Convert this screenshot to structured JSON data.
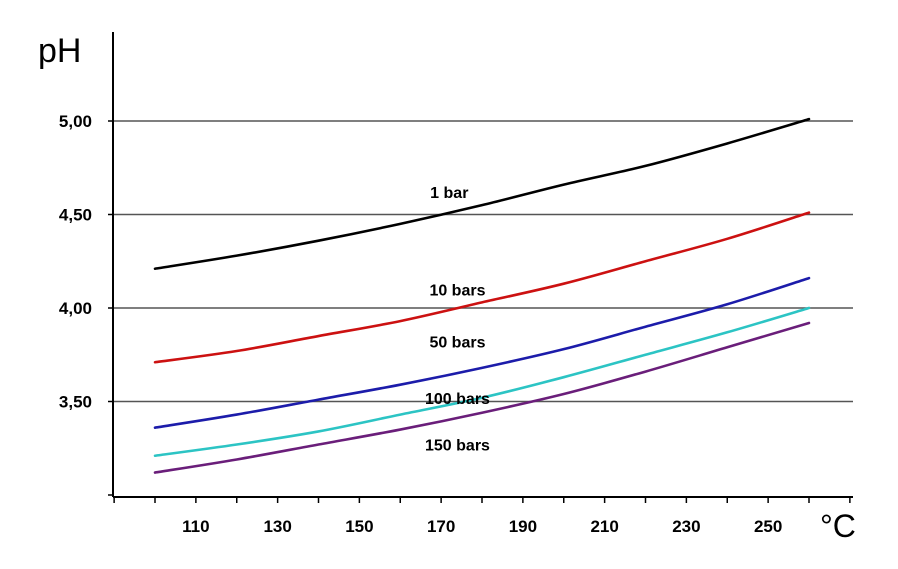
{
  "chart_data": {
    "type": "line",
    "title": "",
    "ylabel": "pH",
    "xlabel": "°C",
    "xlim": [
      90,
      270
    ],
    "ylim": [
      3.0,
      5.5
    ],
    "grid": "horizontal",
    "x_ticks": [
      110,
      130,
      150,
      170,
      190,
      210,
      230,
      250
    ],
    "x_tick_labels": [
      "110",
      "130",
      "150",
      "170",
      "190",
      "210",
      "230",
      "250"
    ],
    "y_ticks": [
      3.5,
      4.0,
      4.5,
      5.0
    ],
    "y_tick_labels": [
      "3,50",
      "4,00",
      "4,50",
      "5,00"
    ],
    "series": [
      {
        "name": "1 bar",
        "color": "#000000",
        "label_at": [
          172,
          4.62
        ],
        "points": [
          [
            100,
            4.21
          ],
          [
            120,
            4.28
          ],
          [
            140,
            4.36
          ],
          [
            160,
            4.45
          ],
          [
            180,
            4.55
          ],
          [
            200,
            4.66
          ],
          [
            220,
            4.76
          ],
          [
            240,
            4.88
          ],
          [
            260,
            5.01
          ]
        ]
      },
      {
        "name": "10 bars",
        "color": "#cc1111",
        "label_at": [
          174,
          4.1
        ],
        "points": [
          [
            100,
            3.71
          ],
          [
            120,
            3.77
          ],
          [
            140,
            3.85
          ],
          [
            160,
            3.93
          ],
          [
            180,
            4.03
          ],
          [
            200,
            4.13
          ],
          [
            220,
            4.25
          ],
          [
            240,
            4.37
          ],
          [
            260,
            4.51
          ]
        ]
      },
      {
        "name": "50 bars",
        "color": "#1c1caa",
        "label_at": [
          174,
          3.82
        ],
        "points": [
          [
            100,
            3.36
          ],
          [
            120,
            3.43
          ],
          [
            140,
            3.51
          ],
          [
            160,
            3.59
          ],
          [
            180,
            3.68
          ],
          [
            200,
            3.78
          ],
          [
            220,
            3.9
          ],
          [
            240,
            4.02
          ],
          [
            260,
            4.16
          ]
        ]
      },
      {
        "name": "100 bars",
        "color": "#2cc4c4",
        "label_at": [
          174,
          3.52
        ],
        "points": [
          [
            100,
            3.21
          ],
          [
            120,
            3.27
          ],
          [
            140,
            3.34
          ],
          [
            160,
            3.43
          ],
          [
            180,
            3.52
          ],
          [
            200,
            3.63
          ],
          [
            220,
            3.75
          ],
          [
            240,
            3.87
          ],
          [
            260,
            4.0
          ]
        ]
      },
      {
        "name": "150 bars",
        "color": "#6a1e7a",
        "label_at": [
          174,
          3.27
        ],
        "points": [
          [
            100,
            3.12
          ],
          [
            120,
            3.19
          ],
          [
            140,
            3.27
          ],
          [
            160,
            3.35
          ],
          [
            180,
            3.44
          ],
          [
            200,
            3.54
          ],
          [
            220,
            3.66
          ],
          [
            240,
            3.79
          ],
          [
            260,
            3.92
          ]
        ]
      }
    ]
  }
}
